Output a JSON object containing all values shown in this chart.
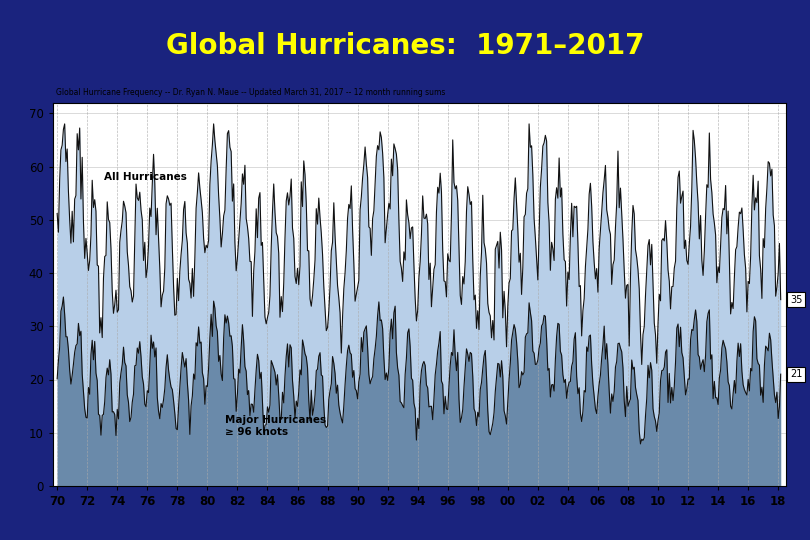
{
  "title": "Global Hurricanes:  1971–2017",
  "title_color": "#FFFF00",
  "title_bg_color": "#1a237e",
  "bottom_bg_color": "#3949ab",
  "subtitle": "Global Hurricane Frequency -- Dr. Ryan N. Maue -- Updated March 31, 2017 -- 12 month running sums",
  "label_all": "All Hurricanes",
  "label_major": "Major Hurricanes\n≥ 96 knots",
  "xlabel_ticks": [
    "70",
    "72",
    "74",
    "76",
    "78",
    "80",
    "82",
    "84",
    "86",
    "88",
    "90",
    "92",
    "94",
    "96",
    "98",
    "00",
    "02",
    "04",
    "06",
    "08",
    "10",
    "12",
    "14",
    "16",
    "18"
  ],
  "yticks": [
    0,
    10,
    20,
    30,
    40,
    50,
    60,
    70
  ],
  "ylim": [
    0,
    72
  ],
  "xlim_left": 1969.7,
  "xlim_right": 2018.5,
  "annotation_val1": 35,
  "annotation_val2": 21,
  "bg_color": "#ffffff",
  "fill_color_all": "#b8cfe8",
  "fill_color_major": "#6a8aaa",
  "line_color": "#111111",
  "grid_color": "#cccccc",
  "vline_color": "#aaaaaa"
}
